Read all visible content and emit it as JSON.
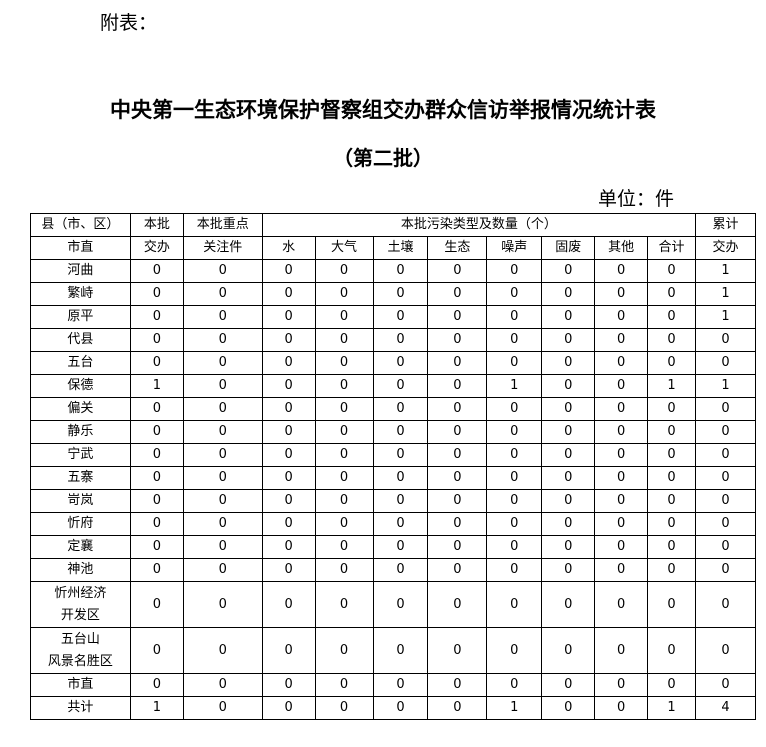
{
  "attachment_label": "附表：",
  "title": "中央第一生态环境保护督察组交办群众信访举报情况统计表",
  "subtitle": "（第二批）",
  "unit": "单位：件",
  "headers": {
    "county": "县（市、区）",
    "county2": "市直",
    "batch": "本批",
    "batch2": "交办",
    "key": "本批重点",
    "key2": "关注件",
    "types": "本批污染类型及数量（个）",
    "cum": "累计",
    "cum2": "交办",
    "sub": [
      "水",
      "大气",
      "土壤",
      "生态",
      "噪声",
      "固废",
      "其他",
      "合计"
    ]
  },
  "rows": [
    {
      "name": "河曲",
      "v": [
        "0",
        "0",
        "0",
        "0",
        "0",
        "0",
        "0",
        "0",
        "0",
        "0",
        "1"
      ]
    },
    {
      "name": "繁峙",
      "v": [
        "0",
        "0",
        "0",
        "0",
        "0",
        "0",
        "0",
        "0",
        "0",
        "0",
        "1"
      ]
    },
    {
      "name": "原平",
      "v": [
        "0",
        "0",
        "0",
        "0",
        "0",
        "0",
        "0",
        "0",
        "0",
        "0",
        "1"
      ]
    },
    {
      "name": "代县",
      "v": [
        "0",
        "0",
        "0",
        "0",
        "0",
        "0",
        "0",
        "0",
        "0",
        "0",
        "0"
      ]
    },
    {
      "name": "五台",
      "v": [
        "0",
        "0",
        "0",
        "0",
        "0",
        "0",
        "0",
        "0",
        "0",
        "0",
        "0"
      ]
    },
    {
      "name": "保德",
      "v": [
        "1",
        "0",
        "0",
        "0",
        "0",
        "0",
        "1",
        "0",
        "0",
        "1",
        "1"
      ]
    },
    {
      "name": "偏关",
      "v": [
        "0",
        "0",
        "0",
        "0",
        "0",
        "0",
        "0",
        "0",
        "0",
        "0",
        "0"
      ]
    },
    {
      "name": "静乐",
      "v": [
        "0",
        "0",
        "0",
        "0",
        "0",
        "0",
        "0",
        "0",
        "0",
        "0",
        "0"
      ]
    },
    {
      "name": "宁武",
      "v": [
        "0",
        "0",
        "0",
        "0",
        "0",
        "0",
        "0",
        "0",
        "0",
        "0",
        "0"
      ]
    },
    {
      "name": "五寨",
      "v": [
        "0",
        "0",
        "0",
        "0",
        "0",
        "0",
        "0",
        "0",
        "0",
        "0",
        "0"
      ]
    },
    {
      "name": "岢岚",
      "v": [
        "0",
        "0",
        "0",
        "0",
        "0",
        "0",
        "0",
        "0",
        "0",
        "0",
        "0"
      ]
    },
    {
      "name": "忻府",
      "v": [
        "0",
        "0",
        "0",
        "0",
        "0",
        "0",
        "0",
        "0",
        "0",
        "0",
        "0"
      ]
    },
    {
      "name": "定襄",
      "v": [
        "0",
        "0",
        "0",
        "0",
        "0",
        "0",
        "0",
        "0",
        "0",
        "0",
        "0"
      ]
    },
    {
      "name": "神池",
      "v": [
        "0",
        "0",
        "0",
        "0",
        "0",
        "0",
        "0",
        "0",
        "0",
        "0",
        "0"
      ]
    },
    {
      "name": "忻州经济",
      "name2": "开发区",
      "v": [
        "0",
        "0",
        "0",
        "0",
        "0",
        "0",
        "0",
        "0",
        "0",
        "0",
        "0"
      ]
    },
    {
      "name": "五台山",
      "name2": "风景名胜区",
      "v": [
        "0",
        "0",
        "0",
        "0",
        "0",
        "0",
        "0",
        "0",
        "0",
        "0",
        "0"
      ]
    },
    {
      "name": "市直",
      "v": [
        "0",
        "0",
        "0",
        "0",
        "0",
        "0",
        "0",
        "0",
        "0",
        "0",
        "0"
      ]
    },
    {
      "name": "共计",
      "v": [
        "1",
        "0",
        "0",
        "0",
        "0",
        "0",
        "1",
        "0",
        "0",
        "1",
        "4"
      ]
    }
  ]
}
